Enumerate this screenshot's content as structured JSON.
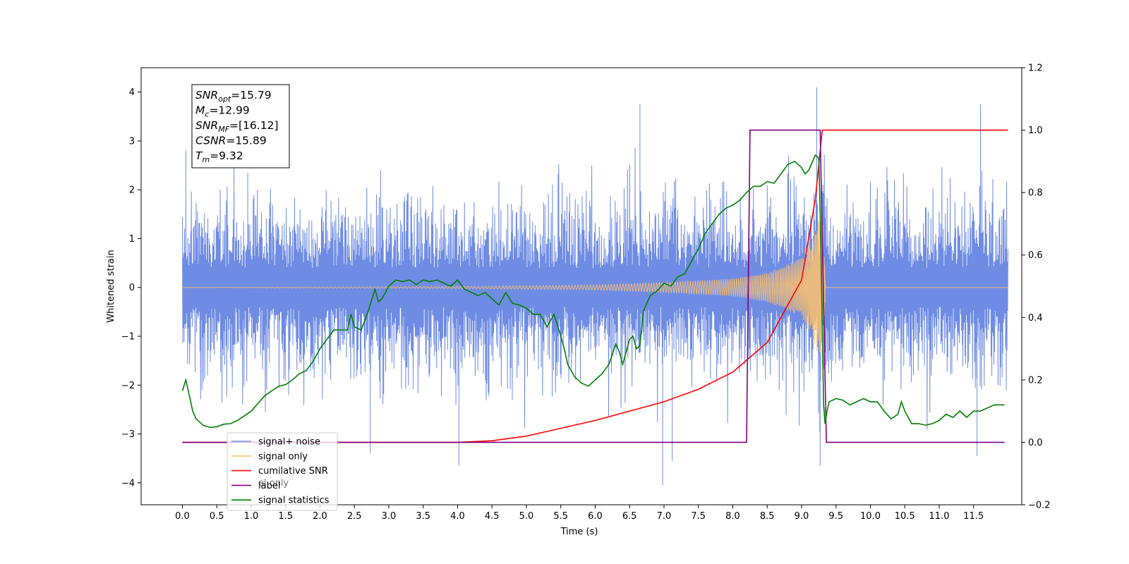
{
  "chart_data": {
    "type": "line",
    "xlabel": "Time (s)",
    "ylabel": "Whitened strain",
    "xlim": [
      -0.6,
      12.2
    ],
    "ylim": [
      -4.45,
      4.5
    ],
    "ylim_right": [
      -0.2,
      1.2
    ],
    "x_ticks": [
      "0.0",
      "0.5",
      "1.0",
      "1.5",
      "2.0",
      "2.5",
      "3.0",
      "3.5",
      "4.0",
      "4.5",
      "5.0",
      "5.5",
      "6.0",
      "6.5",
      "7.0",
      "7.5",
      "8.0",
      "8.5",
      "9.0",
      "9.5",
      "10.0",
      "10.5",
      "11.0",
      "11.5"
    ],
    "y_ticks_left": [
      "4",
      "3",
      "2",
      "1",
      "0",
      "−1",
      "−2",
      "−3",
      "−4"
    ],
    "y_ticks_right": [
      "1.2",
      "1.0",
      "0.8",
      "0.6",
      "0.4",
      "0.2",
      "0.0",
      "−0.2"
    ],
    "grid": false,
    "legend_placement": "lower-left",
    "info_box": {
      "lines": [
        {
          "sym": "SNR",
          "sub": "opt",
          "value": "=15.79"
        },
        {
          "sym": "M",
          "sub": "c",
          "value": "=12.99"
        },
        {
          "sym": "SNR",
          "sub": "MF",
          "value": "=[16.12]"
        },
        {
          "sym": "CSNR",
          "sub": "",
          "value": "=15.89"
        },
        {
          "sym": "T",
          "sub": "m",
          "value": "=9.32"
        }
      ]
    },
    "legend": [
      {
        "label": "signal+ noise",
        "color": "#6f8ce4"
      },
      {
        "label": "signal only",
        "color": "#ffc16b"
      },
      {
        "label": "cumilative SNR",
        "color": "#ff0000"
      },
      {
        "label": "label",
        "color": "#800080"
      },
      {
        "label": "signal statistics",
        "color": "#008000"
      }
    ],
    "hidden_legend_fragment": "el only",
    "series": [
      {
        "name": "signal+ noise",
        "axis": "left",
        "color": "#6f8ce4",
        "noise_envelope": {
          "x": [
            0.0,
            8.2,
            8.6,
            9.0,
            9.25,
            9.32,
            9.4,
            12.0
          ],
          "amplitude": [
            1.0,
            1.0,
            1.05,
            1.15,
            1.4,
            1.6,
            1.0,
            1.0
          ]
        },
        "peaks": [
          [
            0.05,
            2.8
          ],
          [
            0.95,
            2.35
          ],
          [
            2.73,
            -3.4
          ],
          [
            4.02,
            -3.65
          ],
          [
            6.65,
            3.75
          ],
          [
            6.98,
            -4.05
          ],
          [
            7.12,
            -3.55
          ],
          [
            9.22,
            4.1
          ],
          [
            9.27,
            -3.65
          ],
          [
            11.6,
            3.75
          ],
          [
            11.55,
            -3.45
          ]
        ]
      },
      {
        "name": "signal only",
        "axis": "left",
        "color": "#ffc16b",
        "chirp": {
          "start": 0.0,
          "merger": 9.32,
          "end": 12.0,
          "envelope": {
            "x": [
              0.0,
              4.0,
              6.0,
              7.0,
              8.0,
              8.5,
              9.0,
              9.2,
              9.3,
              9.35
            ],
            "amplitude": [
              0.0,
              0.02,
              0.05,
              0.1,
              0.18,
              0.3,
              0.6,
              1.2,
              1.7,
              0.05
            ]
          }
        }
      },
      {
        "name": "cumilative SNR",
        "axis": "right",
        "color": "#ff0000",
        "x": [
          0.0,
          4.0,
          4.5,
          5.0,
          5.5,
          6.0,
          6.5,
          7.0,
          7.5,
          8.0,
          8.5,
          9.0,
          9.2,
          9.3,
          9.32,
          12.0
        ],
        "values": [
          0.0,
          0.0,
          0.005,
          0.02,
          0.045,
          0.07,
          0.1,
          0.13,
          0.17,
          0.225,
          0.32,
          0.52,
          0.78,
          1.0,
          1.0,
          1.0
        ]
      },
      {
        "name": "label",
        "axis": "right",
        "color": "#800080",
        "x": [
          0.0,
          8.2,
          8.25,
          9.27,
          9.36,
          11.95
        ],
        "values": [
          0.0,
          0.0,
          1.0,
          1.0,
          0.0,
          0.0
        ]
      },
      {
        "name": "signal statistics",
        "axis": "right",
        "color": "#008000",
        "x": [
          0.0,
          0.05,
          0.1,
          0.15,
          0.2,
          0.3,
          0.4,
          0.5,
          0.6,
          0.7,
          0.8,
          0.9,
          1.0,
          1.2,
          1.4,
          1.5,
          1.6,
          1.7,
          1.8,
          1.9,
          2.0,
          2.1,
          2.2,
          2.3,
          2.4,
          2.45,
          2.5,
          2.6,
          2.7,
          2.8,
          2.85,
          2.9,
          3.0,
          3.1,
          3.2,
          3.3,
          3.4,
          3.5,
          3.6,
          3.7,
          3.8,
          3.9,
          4.0,
          4.1,
          4.2,
          4.3,
          4.4,
          4.5,
          4.6,
          4.7,
          4.8,
          4.9,
          5.0,
          5.1,
          5.2,
          5.3,
          5.4,
          5.5,
          5.55,
          5.6,
          5.7,
          5.8,
          5.9,
          6.0,
          6.1,
          6.2,
          6.3,
          6.35,
          6.4,
          6.5,
          6.55,
          6.6,
          6.65,
          6.7,
          6.8,
          6.9,
          7.0,
          7.1,
          7.2,
          7.3,
          7.4,
          7.5,
          7.6,
          7.7,
          7.8,
          7.9,
          8.0,
          8.1,
          8.2,
          8.3,
          8.4,
          8.5,
          8.6,
          8.7,
          8.8,
          8.9,
          9.0,
          9.05,
          9.1,
          9.2,
          9.25,
          9.28,
          9.32,
          9.34,
          9.37,
          9.4,
          9.5,
          9.6,
          9.7,
          9.8,
          9.9,
          10.0,
          10.1,
          10.2,
          10.3,
          10.4,
          10.45,
          10.5,
          10.6,
          10.7,
          10.8,
          10.9,
          11.0,
          11.1,
          11.2,
          11.3,
          11.4,
          11.5,
          11.6,
          11.7,
          11.8,
          11.9,
          11.95
        ],
        "values": [
          0.165,
          0.2,
          0.15,
          0.1,
          0.075,
          0.055,
          0.048,
          0.05,
          0.058,
          0.06,
          0.07,
          0.085,
          0.1,
          0.15,
          0.18,
          0.185,
          0.2,
          0.22,
          0.23,
          0.26,
          0.3,
          0.33,
          0.36,
          0.36,
          0.36,
          0.41,
          0.37,
          0.36,
          0.42,
          0.49,
          0.45,
          0.46,
          0.5,
          0.52,
          0.515,
          0.52,
          0.505,
          0.52,
          0.515,
          0.52,
          0.51,
          0.5,
          0.52,
          0.49,
          0.48,
          0.47,
          0.48,
          0.46,
          0.44,
          0.48,
          0.445,
          0.44,
          0.43,
          0.41,
          0.41,
          0.37,
          0.41,
          0.34,
          0.3,
          0.25,
          0.21,
          0.19,
          0.18,
          0.2,
          0.22,
          0.25,
          0.315,
          0.29,
          0.25,
          0.33,
          0.34,
          0.3,
          0.31,
          0.42,
          0.47,
          0.485,
          0.51,
          0.5,
          0.53,
          0.54,
          0.58,
          0.62,
          0.67,
          0.7,
          0.73,
          0.75,
          0.76,
          0.775,
          0.8,
          0.82,
          0.82,
          0.835,
          0.83,
          0.86,
          0.89,
          0.9,
          0.88,
          0.86,
          0.87,
          0.92,
          0.91,
          0.64,
          0.12,
          0.06,
          0.1,
          0.13,
          0.14,
          0.135,
          0.12,
          0.13,
          0.14,
          0.13,
          0.13,
          0.1,
          0.075,
          0.09,
          0.13,
          0.1,
          0.06,
          0.06,
          0.055,
          0.06,
          0.07,
          0.09,
          0.08,
          0.1,
          0.08,
          0.1,
          0.1,
          0.11,
          0.12,
          0.12,
          0.12
        ]
      }
    ]
  }
}
